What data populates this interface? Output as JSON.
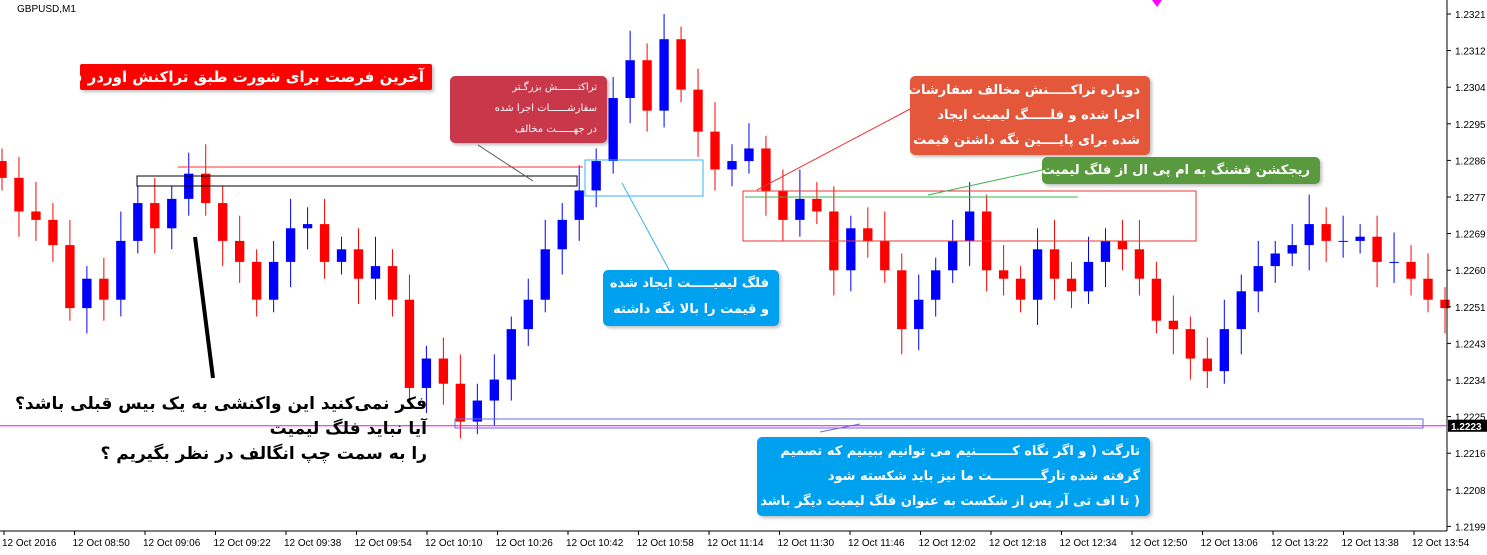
{
  "window": {
    "symbol_title": "GBPUSD,M1"
  },
  "colors": {
    "bull": "#0000ff",
    "bear": "#ff0000",
    "current_price_line": "#ff00ff",
    "grid": "#000000"
  },
  "chart_data": {
    "type": "candlestick",
    "title": "GBPUSD,M1",
    "ylim": [
      1.2195,
      1.2325
    ],
    "y_ticks": [
      "1.2321",
      "1.2312",
      "1.2304",
      "1.2295",
      "1.2286",
      "1.2277",
      "1.2269",
      "1.2260",
      "1.2251",
      "1.2243",
      "1.2234",
      "1.2225",
      "1.2216",
      "1.2208",
      "1.2199"
    ],
    "x_ticks": [
      "12 Oct 2016",
      "12 Oct 08:50",
      "12 Oct 09:06",
      "12 Oct 09:22",
      "12 Oct 09:38",
      "12 Oct 09:54",
      "12 Oct 10:10",
      "12 Oct 10:26",
      "12 Oct 10:42",
      "12 Oct 10:58",
      "12 Oct 11:14",
      "12 Oct 11:30",
      "12 Oct 11:46",
      "12 Oct 12:02",
      "12 Oct 12:18",
      "12 Oct 12:34",
      "12 Oct 12:50",
      "12 Oct 13:06",
      "12 Oct 13:22",
      "12 Oct 13:38",
      "12 Oct 13:54"
    ],
    "current_price": "1.2223",
    "closes": [
      1.2282,
      1.2274,
      1.2272,
      1.2266,
      1.2251,
      1.2258,
      1.2253,
      1.2267,
      1.2276,
      1.227,
      1.2277,
      1.2283,
      1.2276,
      1.2267,
      1.2262,
      1.2253,
      1.2262,
      1.227,
      1.2271,
      1.2262,
      1.2265,
      1.2258,
      1.2261,
      1.2253,
      1.2232,
      1.2239,
      1.2233,
      1.2224,
      1.2229,
      1.2234,
      1.2246,
      1.2253,
      1.2265,
      1.2272,
      1.2279,
      1.2286,
      1.2301,
      1.231,
      1.2298,
      1.2315,
      1.2303,
      1.2293,
      1.2284,
      1.2286,
      1.2289,
      1.2279,
      1.2272,
      1.2277,
      1.2274,
      1.226,
      1.227,
      1.2267,
      1.226,
      1.2246,
      1.2253,
      1.226,
      1.2267,
      1.2274,
      1.226,
      1.2258,
      1.2253,
      1.2265,
      1.2258,
      1.2255,
      1.2262,
      1.2267,
      1.2265,
      1.2258,
      1.2248,
      1.2246,
      1.2239,
      1.2236,
      1.2246,
      1.2255,
      1.2261,
      1.2264,
      1.2266,
      1.2271,
      1.2267,
      1.2267,
      1.2268,
      1.2262,
      1.2262,
      1.2258,
      1.2253,
      1.2251
    ]
  },
  "annotations": {
    "last_chance": "آخرین فرصت برای شورت طبق تراکنش اوردر فلو",
    "bigger_transaction": [
      "تراکتـــــــش بزرگـتر",
      "سفارشــــــات اجرا شده",
      "در جهــــــت مخالف"
    ],
    "again_transaction": [
      "دوباره تراکـــــنش مخالف سفارشات",
      "اجرا شده و فلـــــگ لیمیت ایجاد",
      "شده برای پایــــین نگه داشتن قیمت"
    ],
    "rejection": "ریجکشن قشنگ به ام پی ال از فلگ لیمیت",
    "flag_limit_created": [
      "فلگ لیمیـــــت ایجاد شده",
      "و قیمت را بالا نگه داشته"
    ],
    "target": [
      "تارگت ( و اگر نگاه کــــــــنیم می توانیم ببینیم که تصمیم",
      "گرفته شده تارگـــــــــــت ما نیز باید شکسته شود",
      "( تا اف تی آر پس از شکست به عنوان فلگ لیمیت دیگر باشد"
    ],
    "question": [
      "فکر نمی‌کنید این واکنشی به یک بیس قبلی باشد؟",
      "آیا نباید فلگ لیمیت",
      "را به سمت چپ انگالف در نظر بگیریم ؟"
    ]
  }
}
